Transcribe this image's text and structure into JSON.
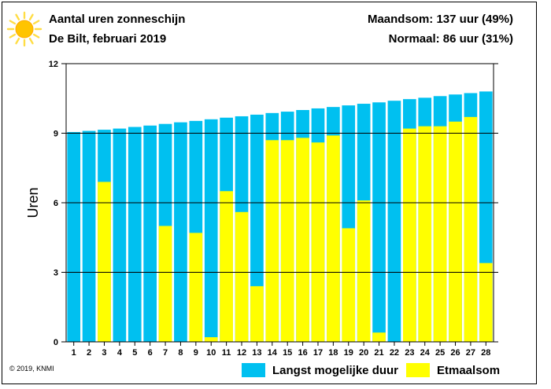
{
  "header": {
    "title": "Aantal uren zonneschijn",
    "subtitle": "De Bilt, februari 2019",
    "month_sum": "Maandsom: 137 uur (49%)",
    "normal": "Normaal: 86 uur (31%)"
  },
  "footer": {
    "copyright": "© 2019, KNMI"
  },
  "icons": {
    "sun": "sun-icon"
  },
  "colors": {
    "possible": "#00c0f0",
    "actual": "#ffff00",
    "sun_core": "#ffc400",
    "sun_rays": "#ffdd44"
  },
  "chart_data": {
    "type": "bar",
    "title": "Aantal uren zonneschijn",
    "xlabel": "",
    "ylabel": "Uren",
    "ylim": [
      0,
      12
    ],
    "yticks": [
      0,
      3,
      6,
      9,
      12
    ],
    "grid": true,
    "legend_position": "bottom-right",
    "categories": [
      "1",
      "2",
      "3",
      "4",
      "5",
      "6",
      "7",
      "8",
      "9",
      "10",
      "11",
      "12",
      "13",
      "14",
      "15",
      "16",
      "17",
      "18",
      "19",
      "20",
      "21",
      "22",
      "23",
      "24",
      "25",
      "26",
      "27",
      "28"
    ],
    "series": [
      {
        "name": "Langst mogelijke duur",
        "color": "#00c0f0",
        "values": [
          9.05,
          9.1,
          9.15,
          9.2,
          9.27,
          9.33,
          9.4,
          9.47,
          9.53,
          9.6,
          9.67,
          9.73,
          9.8,
          9.87,
          9.93,
          10.0,
          10.07,
          10.13,
          10.2,
          10.27,
          10.33,
          10.4,
          10.47,
          10.53,
          10.6,
          10.67,
          10.73,
          10.8
        ]
      },
      {
        "name": "Etmaalsom",
        "color": "#ffff00",
        "values": [
          0,
          0,
          6.9,
          0,
          0,
          0,
          5.0,
          0,
          4.7,
          0.2,
          6.5,
          5.6,
          2.4,
          8.7,
          8.7,
          8.8,
          8.6,
          8.9,
          4.9,
          6.1,
          0.4,
          0,
          9.2,
          9.3,
          9.3,
          9.5,
          9.7,
          3.4
        ]
      }
    ]
  }
}
